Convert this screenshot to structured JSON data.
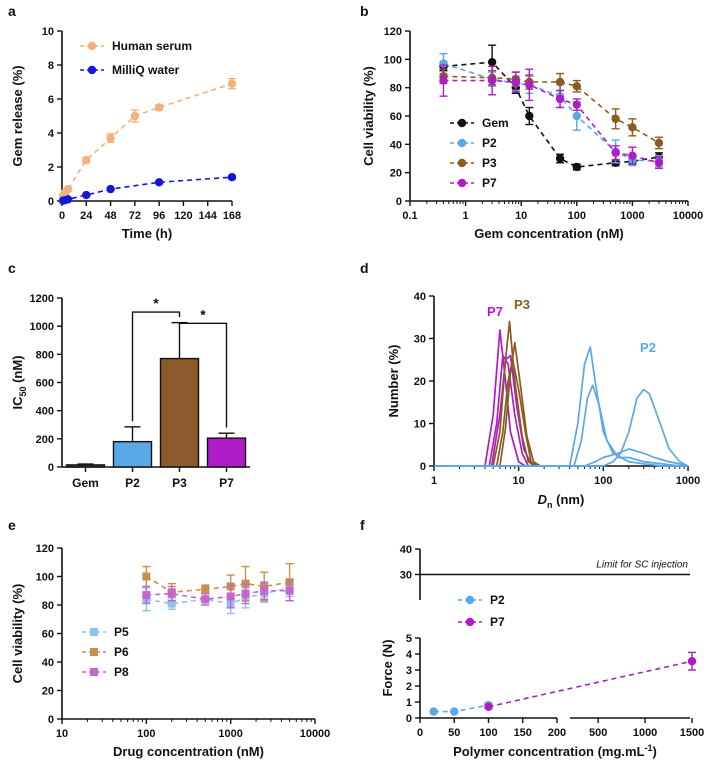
{
  "colors": {
    "serum": "#F2B27E",
    "water": "#1616D8",
    "gem": "#111111",
    "p2": "#5AA8E6",
    "p3": "#8C5A1E",
    "p7": "#B01BC8",
    "p3bar": "#8A5A2A",
    "p5": "#8CC4EE",
    "p6": "#C98F4E",
    "p8": "#C465D0"
  },
  "chart_data": [
    {
      "panel": "a",
      "type": "line",
      "xlabel": "Time (h)",
      "ylabel": "Gem release (%)",
      "xlim": [
        0,
        168
      ],
      "ylim": [
        0,
        10
      ],
      "xticks": [
        0,
        24,
        48,
        72,
        96,
        120,
        144,
        168
      ],
      "yticks": [
        0,
        2,
        4,
        6,
        8,
        10
      ],
      "series": [
        {
          "name": "Human serum",
          "color": "#F2B27E",
          "x": [
            1,
            3,
            6,
            24,
            48,
            72,
            96,
            168
          ],
          "y": [
            0.3,
            0.5,
            0.7,
            2.4,
            3.7,
            5.0,
            5.5,
            6.9
          ],
          "err": [
            0.1,
            0.1,
            0.1,
            0.15,
            0.25,
            0.35,
            0.15,
            0.3
          ]
        },
        {
          "name": "MilliQ water",
          "color": "#1616D8",
          "x": [
            1,
            3,
            6,
            24,
            48,
            96,
            168
          ],
          "y": [
            0.02,
            0.05,
            0.1,
            0.35,
            0.7,
            1.1,
            1.4
          ],
          "err": [
            0.02,
            0.02,
            0.03,
            0.05,
            0.05,
            0.05,
            0.08
          ]
        }
      ]
    },
    {
      "panel": "b",
      "type": "scatter",
      "xlabel": "Gem concentration (nM)",
      "ylabel": "Cell viability (%)",
      "xscale": "log",
      "xlim": [
        0.1,
        10000
      ],
      "ylim": [
        0,
        120
      ],
      "xticks": [
        0.1,
        1,
        10,
        100,
        1000,
        10000
      ],
      "xticklabels": [
        "0.1",
        "1",
        "10",
        "100",
        "1000",
        "10000"
      ],
      "yticks": [
        0,
        20,
        40,
        60,
        80,
        100,
        120
      ],
      "series": [
        {
          "name": "Gem",
          "color": "#111111",
          "x": [
            0.4,
            3,
            8,
            14,
            50,
            100,
            500,
            1000,
            3000
          ],
          "y": [
            95,
            98,
            80,
            60,
            30,
            24,
            27,
            28,
            31
          ],
          "err": [
            3,
            12,
            4,
            6,
            3,
            2,
            2,
            2,
            3
          ]
        },
        {
          "name": "P2",
          "color": "#5AA8E6",
          "x": [
            0.4,
            3,
            8,
            14,
            50,
            100,
            500,
            1000,
            3000
          ],
          "y": [
            97,
            86,
            83,
            82,
            74,
            60,
            35,
            29,
            28
          ],
          "err": [
            7,
            5,
            5,
            6,
            8,
            10,
            8,
            4,
            4
          ]
        },
        {
          "name": "P3",
          "color": "#8C5A1E",
          "x": [
            0.4,
            3,
            8,
            14,
            50,
            100,
            500,
            1000,
            3000
          ],
          "y": [
            88,
            87,
            86,
            84,
            84,
            81,
            58,
            52,
            41
          ],
          "err": [
            5,
            5,
            5,
            5,
            6,
            4,
            7,
            6,
            4
          ]
        },
        {
          "name": "P7",
          "color": "#B01BC8",
          "x": [
            0.4,
            3,
            8,
            14,
            50,
            100,
            500,
            1000,
            3000
          ],
          "y": [
            85,
            85,
            84,
            82,
            72,
            68,
            34,
            32,
            27
          ],
          "err": [
            11,
            10,
            7,
            11,
            6,
            4,
            5,
            6,
            4
          ]
        }
      ]
    },
    {
      "panel": "c",
      "type": "bar",
      "ylabel_main": "IC",
      "ylabel_sub": "50",
      "ylabel_unit": " (nM)",
      "categories": [
        "Gem",
        "P2",
        "P3",
        "P7"
      ],
      "values": [
        15,
        180,
        770,
        205
      ],
      "err": [
        6,
        105,
        255,
        35
      ],
      "ylim": [
        0,
        1200
      ],
      "yticks": [
        0,
        200,
        400,
        600,
        800,
        1000,
        1200
      ],
      "significance": [
        {
          "from": "P2",
          "to": "P3",
          "label": "*"
        },
        {
          "from": "P3",
          "to": "P7",
          "label": "*"
        }
      ]
    },
    {
      "panel": "d",
      "type": "line",
      "xlabel_main": "D",
      "xlabel_sub": "n",
      "xlabel_unit": " (nm)",
      "ylabel": "Number (%)",
      "xscale": "log",
      "xlim": [
        1,
        1000
      ],
      "ylim": [
        0,
        40
      ],
      "xticks": [
        1,
        10,
        100,
        1000
      ],
      "yticks": [
        0,
        10,
        20,
        30,
        40
      ],
      "annotations": [
        "P7",
        "P3",
        "P2"
      ],
      "series": [
        {
          "name": "P7",
          "color": "#B01BC8",
          "x": [
            4,
            5,
            6,
            7,
            8,
            10,
            12,
            14
          ],
          "y": [
            0,
            12,
            32,
            20,
            8,
            1,
            0,
            0
          ]
        },
        {
          "name": "P7",
          "color": "#B01BC8",
          "x": [
            4.5,
            5.5,
            6.5,
            7.5,
            9,
            11,
            13,
            15
          ],
          "y": [
            0,
            10,
            26,
            24,
            12,
            3,
            0,
            0
          ]
        },
        {
          "name": "P7",
          "color": "#B01BC8",
          "x": [
            4.8,
            6,
            7,
            8,
            9.5,
            11.5,
            14,
            16
          ],
          "y": [
            0,
            12,
            25,
            26,
            14,
            4,
            0.5,
            0
          ]
        },
        {
          "name": "P3",
          "color": "#8C5A1E",
          "x": [
            5,
            6,
            7,
            7.8,
            9,
            11,
            13,
            16
          ],
          "y": [
            0,
            8,
            25,
            34,
            20,
            7,
            1,
            0
          ]
        },
        {
          "name": "P3",
          "color": "#8C5A1E",
          "x": [
            5.5,
            6.5,
            7.5,
            8.5,
            10,
            12,
            14,
            17
          ],
          "y": [
            0,
            8,
            20,
            25,
            18,
            8,
            1,
            0
          ]
        },
        {
          "name": "P3",
          "color": "#8C5A1E",
          "x": [
            6,
            7,
            8,
            9,
            10.5,
            12.5,
            15,
            18
          ],
          "y": [
            0,
            9,
            22,
            29,
            19,
            7,
            1,
            0
          ]
        },
        {
          "name": "P2",
          "color": "#5AA8E6",
          "x": [
            1,
            40,
            50,
            60,
            70,
            80,
            100,
            130,
            200,
            300,
            500,
            800,
            1000
          ],
          "y": [
            0,
            0,
            10,
            24,
            28,
            20,
            8,
            3,
            1,
            0.5,
            0,
            0,
            0
          ]
        },
        {
          "name": "P2",
          "color": "#5AA8E6",
          "x": [
            1,
            45,
            55,
            65,
            75,
            90,
            110,
            150,
            200,
            300,
            500,
            800,
            1000
          ],
          "y": [
            0,
            0,
            6,
            16,
            19,
            14,
            6,
            2,
            2,
            1,
            0.5,
            0,
            0
          ]
        },
        {
          "name": "P2",
          "color": "#5AA8E6",
          "x": [
            1,
            100,
            130,
            160,
            200,
            250,
            300,
            350,
            450,
            600,
            800,
            1000
          ],
          "y": [
            0,
            0,
            1,
            3,
            8,
            16,
            18,
            17,
            11,
            4,
            1,
            0
          ]
        },
        {
          "name": "P2",
          "color": "#5AA8E6",
          "x": [
            1,
            60,
            80,
            100,
            150,
            200,
            300,
            400,
            600,
            800,
            1000
          ],
          "y": [
            0,
            0,
            1,
            2,
            3,
            4,
            3,
            2,
            1,
            0.5,
            0
          ]
        }
      ]
    },
    {
      "panel": "e",
      "type": "scatter",
      "xlabel": "Drug concentration (nM)",
      "ylabel": "Cell viability (%)",
      "xscale": "log",
      "xlim": [
        10,
        10000
      ],
      "ylim": [
        0,
        120
      ],
      "xticks": [
        10,
        100,
        1000,
        10000
      ],
      "yticks": [
        0,
        20,
        40,
        60,
        80,
        100,
        120
      ],
      "series": [
        {
          "name": "P5",
          "color": "#8CC4EE",
          "x": [
            100,
            200,
            500,
            1000,
            1500,
            2500,
            5000
          ],
          "y": [
            84,
            81,
            84,
            81,
            85,
            88,
            92
          ],
          "err": [
            8,
            4,
            4,
            7,
            7,
            6,
            6
          ]
        },
        {
          "name": "P6",
          "color": "#C98F4E",
          "x": [
            100,
            200,
            500,
            1000,
            1500,
            2500,
            5000
          ],
          "y": [
            100,
            89,
            91,
            93,
            95,
            93,
            96
          ],
          "err": [
            7,
            6,
            3,
            8,
            12,
            10,
            13
          ]
        },
        {
          "name": "P8",
          "color": "#C465D0",
          "x": [
            100,
            200,
            500,
            1000,
            1500,
            2500,
            5000
          ],
          "y": [
            87,
            88,
            84,
            86,
            88,
            90,
            90
          ],
          "err": [
            6,
            5,
            4,
            8,
            7,
            6,
            7
          ]
        }
      ]
    },
    {
      "panel": "f",
      "type": "scatter",
      "xlabel": "Polymer concentration (mg.mL",
      "xlabel_sup": "-1",
      "xlabel_end": ")",
      "ylabel": "Force (N)",
      "xticks_left": [
        0,
        50,
        100,
        150,
        200
      ],
      "xticks_right": [
        500,
        1000,
        1500
      ],
      "yticks_bottom": [
        0,
        1,
        2,
        3,
        4,
        5
      ],
      "yticks_top": [
        30,
        40
      ],
      "limit_value": 30,
      "limit_label": "Limit for SC injection",
      "series": [
        {
          "name": "P2",
          "color": "#5AA8E6",
          "x": [
            20,
            50,
            100
          ],
          "y": [
            0.4,
            0.4,
            0.8
          ],
          "err": [
            0.05,
            0.05,
            0.15
          ]
        },
        {
          "name": "P7",
          "color": "#B01BC8",
          "x": [
            100,
            1500
          ],
          "y": [
            0.7,
            3.55
          ],
          "err": [
            0.1,
            0.55
          ]
        }
      ]
    }
  ]
}
